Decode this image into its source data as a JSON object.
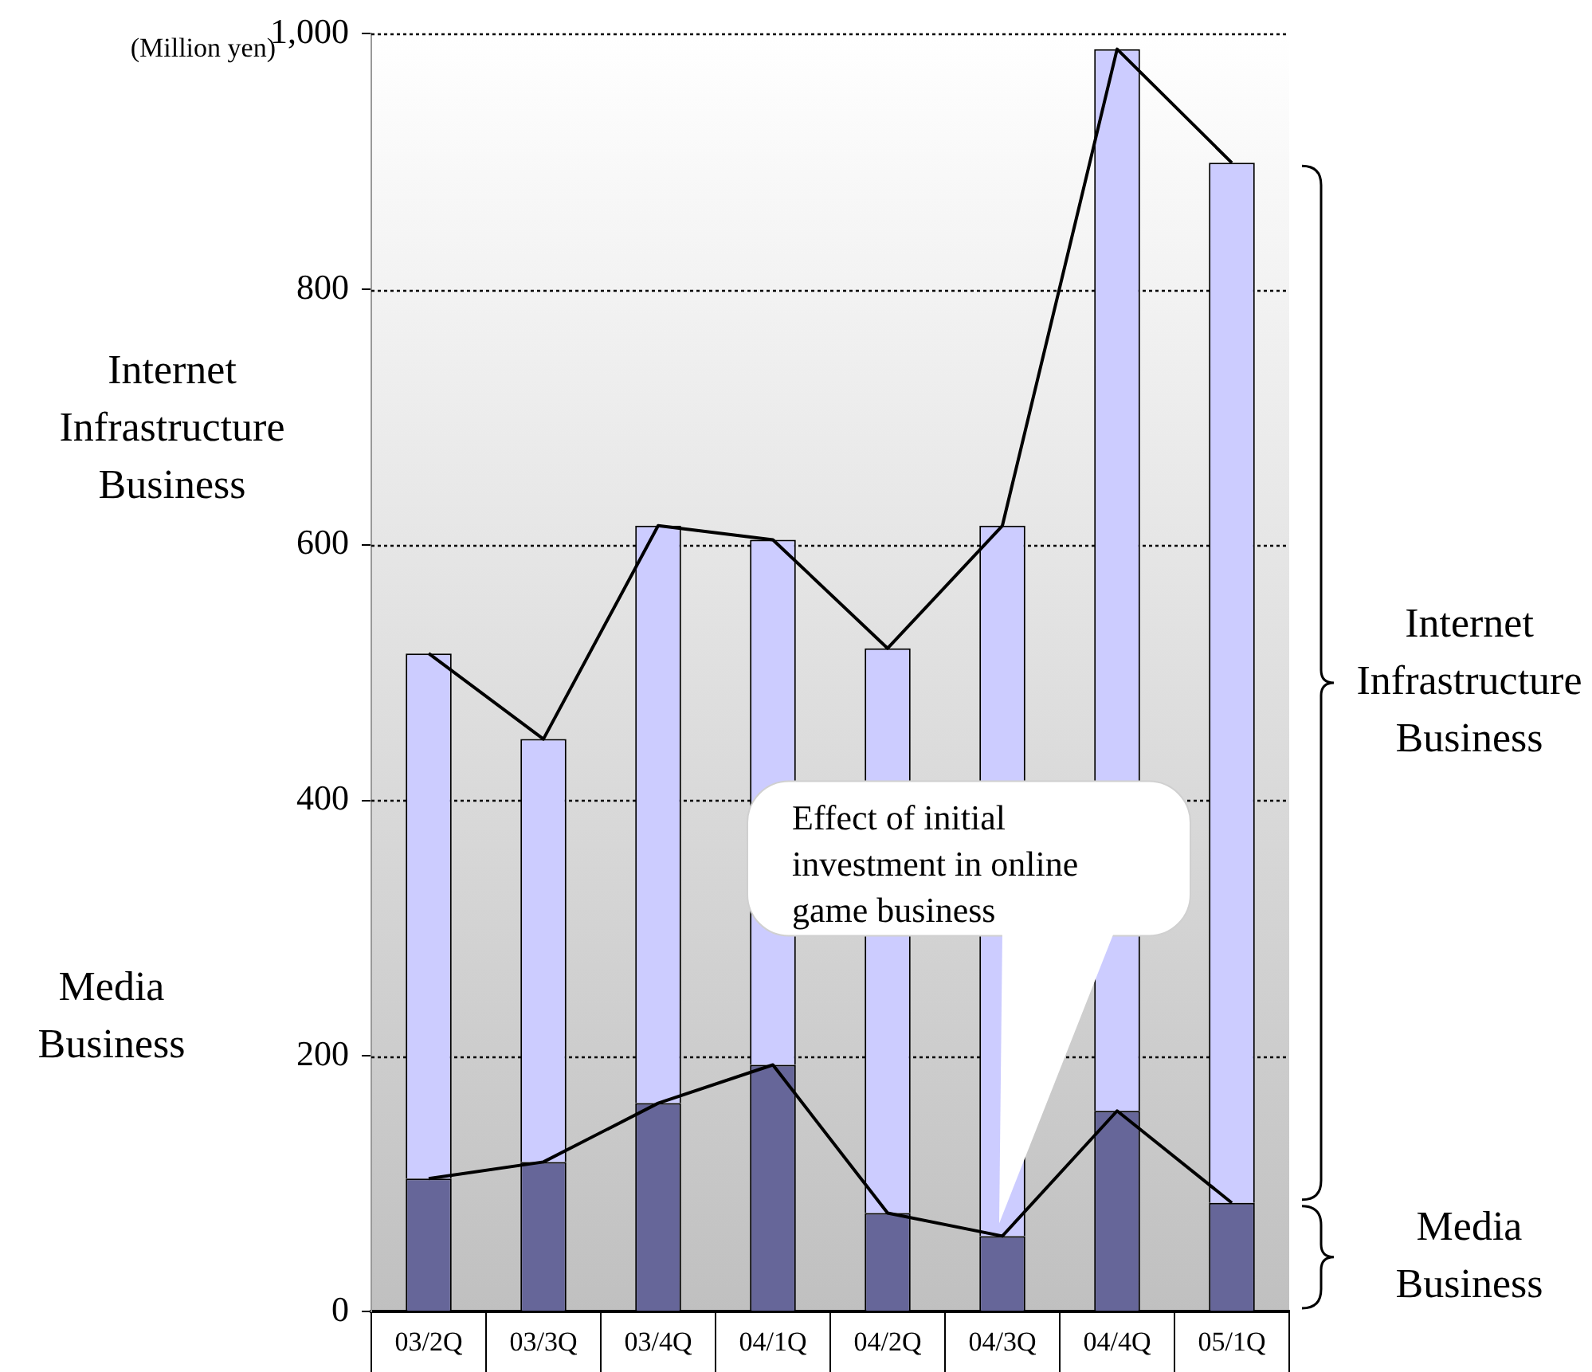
{
  "chart_data": {
    "type": "bar",
    "stacked": true,
    "ylabel": "(Million yen)",
    "categories": [
      "03/2Q",
      "03/3Q",
      "03/4Q",
      "04/1Q",
      "04/2Q",
      "04/3Q",
      "04/4Q",
      "05/1Q"
    ],
    "series": [
      {
        "name": "Media Business",
        "color": "#666699",
        "values": [
          104,
          117,
          163,
          193,
          77,
          59,
          157,
          85
        ]
      },
      {
        "name": "Internet Infrastructure Business",
        "color": "#ccccff",
        "values": [
          411,
          331,
          452,
          411,
          442,
          556,
          831,
          814
        ]
      },
      {
        "type": "line",
        "color": "#000000",
        "values": [
          104,
          117,
          163,
          193,
          77,
          59,
          157,
          85
        ]
      },
      {
        "type": "line",
        "color": "#000000",
        "values": [
          515,
          448,
          615,
          604,
          519,
          615,
          988,
          899
        ]
      }
    ],
    "ylim": [
      0,
      1000
    ],
    "yticks": [
      0,
      200,
      400,
      600,
      800,
      {
        "value": 1000,
        "label": "1,000"
      }
    ],
    "grid": "y",
    "marker": "none",
    "line_style": "solid",
    "legend": false,
    "annotations": [
      "Internet Infrastructure Business",
      "Media Business",
      {
        "text": "Effect of initial investment in online game business",
        "x": "04/3Q",
        "y": 59
      }
    ]
  }
}
